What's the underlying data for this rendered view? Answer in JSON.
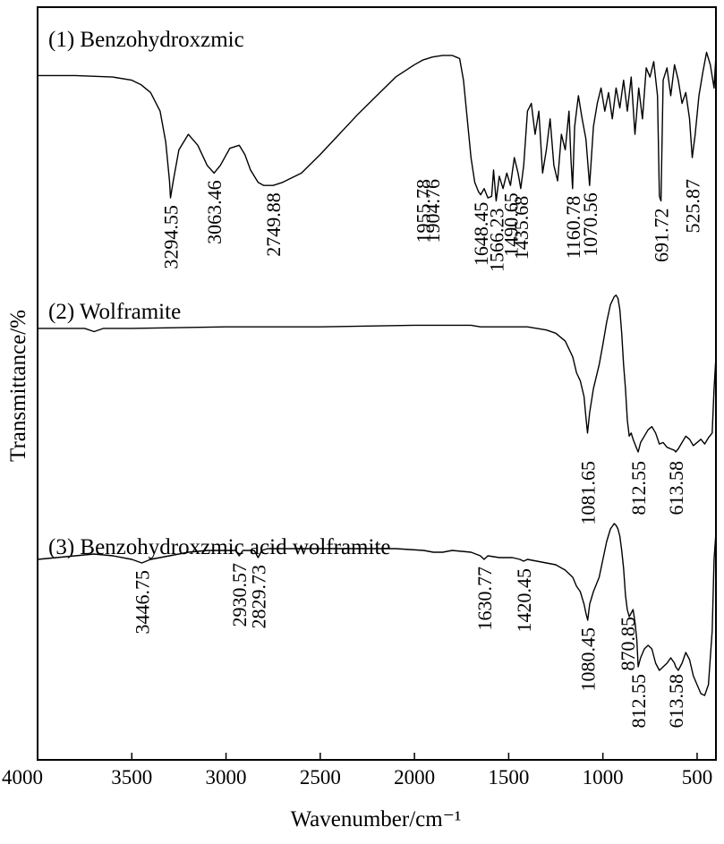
{
  "chart_data": {
    "type": "line",
    "xlabel": "Wavenumber/cm⁻¹",
    "ylabel": "Transmittance/%",
    "xlim": [
      4000,
      400
    ],
    "x_reversed": true,
    "x_ticks": [
      4000,
      3500,
      3000,
      2500,
      2000,
      1500,
      1000,
      500
    ],
    "x_tick_labels": [
      "4000",
      "3500",
      "3000",
      "2500",
      "2000",
      "1500",
      "1000",
      "500"
    ],
    "y_ticks_shown": false,
    "grid": false,
    "legend": "none",
    "series": [
      {
        "name": "(1) Benzohydroxzmic",
        "x": [
          4000,
          3800,
          3600,
          3500,
          3450,
          3400,
          3350,
          3320,
          3300,
          3294.55,
          3280,
          3250,
          3200,
          3150,
          3100,
          3063.46,
          3030,
          2980,
          2930,
          2900,
          2870,
          2830,
          2800,
          2760,
          2749.88,
          2700,
          2600,
          2500,
          2400,
          2300,
          2200,
          2100,
          2000,
          1955.78,
          1930,
          1904.76,
          1850,
          1800,
          1760,
          1740,
          1720,
          1700,
          1680,
          1660,
          1648.45,
          1630,
          1610,
          1590,
          1580,
          1566.23,
          1550,
          1530,
          1510,
          1490.65,
          1470,
          1450,
          1435.68,
          1420,
          1400,
          1380,
          1360,
          1340,
          1320,
          1300,
          1280,
          1260,
          1240,
          1220,
          1200,
          1180,
          1170,
          1160.78,
          1150,
          1130,
          1110,
          1090,
          1070.56,
          1050,
          1030,
          1010,
          990,
          970,
          950,
          930,
          910,
          890,
          870,
          850,
          830,
          810,
          790,
          770,
          750,
          730,
          710,
          700,
          691.72,
          680,
          660,
          640,
          620,
          600,
          580,
          560,
          540,
          525.87,
          510,
          490,
          470,
          450,
          430,
          410,
          400
        ],
        "t": [
          0.83,
          0.83,
          0.82,
          0.8,
          0.77,
          0.72,
          0.6,
          0.4,
          0.15,
          0.04,
          0.15,
          0.35,
          0.45,
          0.38,
          0.25,
          0.2,
          0.25,
          0.36,
          0.38,
          0.32,
          0.22,
          0.14,
          0.12,
          0.12,
          0.12,
          0.14,
          0.2,
          0.32,
          0.45,
          0.58,
          0.7,
          0.82,
          0.9,
          0.93,
          0.94,
          0.95,
          0.96,
          0.96,
          0.94,
          0.8,
          0.55,
          0.3,
          0.14,
          0.08,
          0.06,
          0.1,
          0.04,
          0.05,
          0.22,
          0.02,
          0.18,
          0.1,
          0.2,
          0.12,
          0.3,
          0.2,
          0.1,
          0.25,
          0.6,
          0.65,
          0.45,
          0.6,
          0.2,
          0.35,
          0.55,
          0.25,
          0.15,
          0.45,
          0.35,
          0.6,
          0.3,
          0.1,
          0.5,
          0.7,
          0.55,
          0.42,
          0.12,
          0.5,
          0.65,
          0.75,
          0.6,
          0.72,
          0.55,
          0.75,
          0.62,
          0.8,
          0.6,
          0.82,
          0.45,
          0.75,
          0.55,
          0.88,
          0.82,
          0.92,
          0.7,
          0.05,
          0.02,
          0.8,
          0.88,
          0.7,
          0.9,
          0.8,
          0.65,
          0.72,
          0.55,
          0.3,
          0.45,
          0.7,
          0.85,
          0.98,
          0.9,
          0.75,
          0.96
        ],
        "peaks": [
          3294.55,
          3063.46,
          2749.88,
          1955.78,
          1904.76,
          1648.45,
          1566.23,
          1490.65,
          1435.68,
          1160.78,
          1070.56,
          691.72,
          525.87
        ],
        "peak_labels": [
          "3294.55",
          "3063.46",
          "2749.88",
          "1955.78",
          "1904.76",
          "1648.45",
          "1566.23",
          "1490.65",
          "1435.68",
          "1160.78",
          "1070.56",
          "691.72",
          "525.87"
        ]
      },
      {
        "name": "(2) Wolframite",
        "x": [
          4000,
          3750,
          3700,
          3650,
          3500,
          3000,
          2500,
          2000,
          1800,
          1700,
          1650,
          1600,
          1500,
          1400,
          1300,
          1250,
          1200,
          1160,
          1140,
          1120,
          1100,
          1090,
          1081.65,
          1070,
          1050,
          1020,
          1000,
          980,
          960,
          940,
          930,
          920,
          910,
          900,
          890,
          880,
          870,
          860,
          850,
          840,
          830,
          820,
          812.55,
          800,
          780,
          760,
          740,
          720,
          700,
          680,
          660,
          640,
          620,
          613.58,
          600,
          580,
          560,
          540,
          520,
          500,
          480,
          460,
          440,
          420,
          410,
          400
        ],
        "t": [
          0.78,
          0.78,
          0.76,
          0.78,
          0.78,
          0.79,
          0.79,
          0.8,
          0.8,
          0.8,
          0.79,
          0.79,
          0.79,
          0.79,
          0.77,
          0.75,
          0.7,
          0.6,
          0.5,
          0.45,
          0.35,
          0.22,
          0.12,
          0.25,
          0.4,
          0.55,
          0.68,
          0.82,
          0.93,
          0.98,
          0.99,
          0.97,
          0.9,
          0.75,
          0.55,
          0.4,
          0.2,
          0.1,
          0.12,
          0.08,
          0.05,
          0.02,
          0.0,
          0.06,
          0.1,
          0.14,
          0.16,
          0.12,
          0.05,
          0.06,
          0.03,
          0.02,
          0.01,
          0.0,
          0.02,
          0.06,
          0.1,
          0.08,
          0.04,
          0.06,
          0.08,
          0.05,
          0.09,
          0.12,
          0.4,
          0.6
        ],
        "peaks": [
          1081.65,
          812.55,
          613.58
        ],
        "peak_labels": [
          "1081.65",
          "812.55",
          "613.58"
        ]
      },
      {
        "name": "(3) Benzohydroxzmic acid wolframite",
        "x": [
          4000,
          3800,
          3700,
          3600,
          3500,
          3446.75,
          3400,
          3300,
          3200,
          3100,
          3000,
          2950,
          2930.57,
          2910,
          2880,
          2850,
          2829.73,
          2810,
          2780,
          2700,
          2500,
          2300,
          2100,
          1950,
          1900,
          1850,
          1800,
          1700,
          1650,
          1630.77,
          1610,
          1550,
          1480,
          1440,
          1420.45,
          1400,
          1350,
          1300,
          1250,
          1200,
          1180,
          1160,
          1140,
          1120,
          1100,
          1090,
          1080.45,
          1070,
          1050,
          1020,
          1000,
          980,
          960,
          940,
          930,
          920,
          910,
          900,
          890,
          880,
          870.85,
          860,
          850,
          840,
          830,
          820,
          812.55,
          800,
          780,
          760,
          740,
          720,
          700,
          680,
          660,
          640,
          620,
          613.58,
          600,
          580,
          560,
          540,
          520,
          500,
          480,
          460,
          440,
          420,
          410,
          400
        ],
        "t": [
          0.8,
          0.82,
          0.83,
          0.82,
          0.8,
          0.78,
          0.8,
          0.82,
          0.84,
          0.85,
          0.85,
          0.85,
          0.82,
          0.85,
          0.85,
          0.85,
          0.81,
          0.85,
          0.86,
          0.86,
          0.86,
          0.86,
          0.86,
          0.85,
          0.84,
          0.84,
          0.85,
          0.84,
          0.82,
          0.8,
          0.82,
          0.81,
          0.81,
          0.8,
          0.79,
          0.8,
          0.79,
          0.78,
          0.77,
          0.74,
          0.72,
          0.7,
          0.65,
          0.62,
          0.55,
          0.5,
          0.46,
          0.55,
          0.62,
          0.7,
          0.8,
          0.9,
          0.97,
          1.0,
          0.99,
          0.97,
          0.93,
          0.85,
          0.75,
          0.6,
          0.52,
          0.48,
          0.5,
          0.52,
          0.45,
          0.35,
          0.2,
          0.25,
          0.3,
          0.32,
          0.3,
          0.22,
          0.18,
          0.2,
          0.22,
          0.25,
          0.22,
          0.2,
          0.18,
          0.22,
          0.28,
          0.24,
          0.15,
          0.1,
          0.05,
          0.04,
          0.1,
          0.4,
          0.8,
          0.95
        ],
        "peaks": [
          3446.75,
          2930.57,
          2829.73,
          1630.77,
          1420.45,
          1080.45,
          870.85,
          812.55,
          613.58
        ],
        "peak_labels": [
          "3446.75",
          "2930.57",
          "2829.73",
          "1630.77",
          "1420.45",
          "1080.45",
          "870.85",
          "812.55",
          "613.58"
        ]
      }
    ]
  }
}
